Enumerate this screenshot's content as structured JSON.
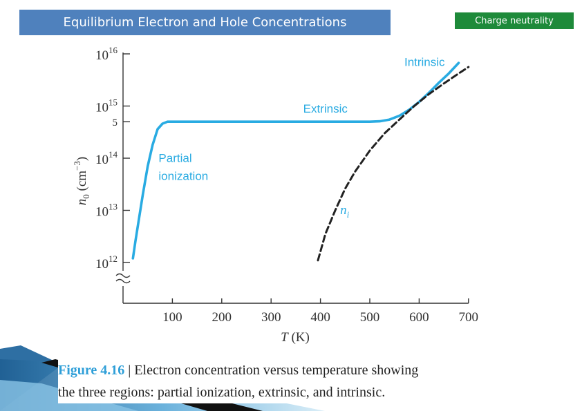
{
  "header": {
    "title": "Equilibrium Electron and Hole Concentrations"
  },
  "badge": {
    "label": "Charge neutrality"
  },
  "figure": {
    "number": "Figure 4.16",
    "caption_line1": "| Electron concentration versus temperature showing",
    "caption_line2": "the three regions: partial ionization, extrinsic, and intrinsic."
  },
  "colors": {
    "title_bg": "#4f81bd",
    "badge_bg": "#1e8a3a",
    "curve": "#29abe2",
    "ni_curve": "#222222"
  },
  "chart_data": {
    "type": "line",
    "xlabel": "T (K)",
    "ylabel": "n0 (cm−3)",
    "xlim": [
      0,
      700
    ],
    "ylim_log10": [
      12,
      16
    ],
    "y_scale": "log",
    "x_ticks": [
      100,
      200,
      300,
      400,
      500,
      600,
      700
    ],
    "y_ticks": [
      {
        "value": 1000000000000.0,
        "label": "1012",
        "base": "10",
        "exp": "12"
      },
      {
        "value": 10000000000000.0,
        "label": "1013",
        "base": "10",
        "exp": "13"
      },
      {
        "value": 100000000000000.0,
        "label": "1014",
        "base": "10",
        "exp": "14"
      },
      {
        "value": 1000000000000000.0,
        "label": "1015",
        "base": "10",
        "exp": "15"
      },
      {
        "value": 1e+16,
        "label": "1016",
        "base": "10",
        "exp": "16"
      }
    ],
    "extra_y_tick": {
      "value": 500000000000000.0,
      "label": "5"
    },
    "series": [
      {
        "name": "n0",
        "style": "solid",
        "x": [
          20,
          25,
          30,
          40,
          50,
          60,
          70,
          80,
          90,
          100,
          120,
          200,
          300,
          400,
          500,
          520,
          540,
          560,
          580,
          600,
          620,
          640,
          660,
          680
        ],
        "y": [
          1200000000000.0,
          2500000000000.0,
          5000000000000.0,
          20000000000000.0,
          70000000000000.0,
          180000000000000.0,
          360000000000000.0,
          460000000000000.0,
          500000000000000.0,
          500000000000000.0,
          500000000000000.0,
          500000000000000.0,
          500000000000000.0,
          500000000000000.0,
          500000000000000.0,
          510000000000000.0,
          550000000000000.0,
          650000000000000.0,
          850000000000000.0,
          1200000000000000.0,
          1800000000000000.0,
          2800000000000000.0,
          4200000000000000.0,
          6700000000000000.0
        ]
      },
      {
        "name": "ni",
        "style": "dashed",
        "x": [
          395,
          410,
          430,
          450,
          470,
          500,
          530,
          560,
          590,
          620,
          650,
          680,
          700
        ],
        "y": [
          1100000000000.0,
          3500000000000.0,
          10000000000000.0,
          26000000000000.0,
          55000000000000.0,
          140000000000000.0,
          300000000000000.0,
          550000000000000.0,
          1000000000000000.0,
          1700000000000000.0,
          2700000000000000.0,
          4200000000000000.0,
          5600000000000000.0
        ]
      }
    ],
    "annotations": [
      {
        "text": "Intrinsic",
        "x": 570,
        "y": 5900000000000000.0
      },
      {
        "text": "Extrinsic",
        "x": 365,
        "y": 750000000000000.0
      },
      {
        "text": "Partial",
        "x": 72,
        "y": 85000000000000.0
      },
      {
        "text": "ionization",
        "x": 72,
        "y": 38000000000000.0
      },
      {
        "text": "n",
        "sub": "i",
        "x": 440,
        "y": 8500000000000.0
      }
    ]
  }
}
